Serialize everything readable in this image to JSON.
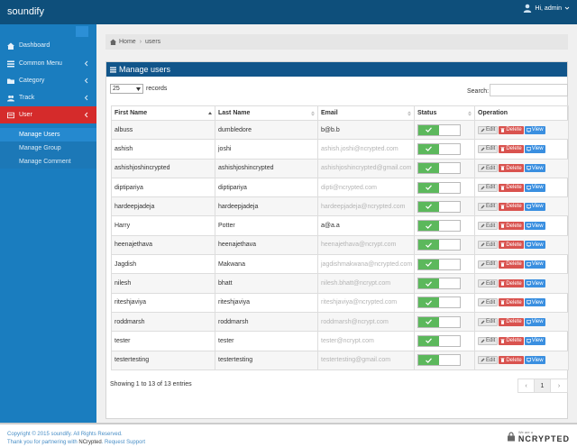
{
  "app": {
    "title": "soundify",
    "user_greeting": "Hi, admin"
  },
  "sidebar": {
    "items": [
      {
        "label": "Dashboard",
        "icon": "dashboard-icon"
      },
      {
        "label": "Common Menu",
        "icon": "list-icon"
      },
      {
        "label": "Category",
        "icon": "folder-icon"
      },
      {
        "label": "Track",
        "icon": "users-icon"
      },
      {
        "label": "User",
        "icon": "user-icon"
      }
    ],
    "submenu": [
      "Manage Users",
      "Manage Group",
      "Manage Comment"
    ]
  },
  "breadcrumb": {
    "home": "Home",
    "current": "users"
  },
  "panel": {
    "title": "Manage users"
  },
  "table_controls": {
    "length_value": "25",
    "length_label": "records",
    "search_label": "Search:"
  },
  "table": {
    "headers": [
      "First Name",
      "Last Name",
      "Email",
      "Status",
      "Operation"
    ],
    "rows": [
      {
        "first": "albuss",
        "last": "dumbledore",
        "email": "b@b.b",
        "blur": false
      },
      {
        "first": "ashish",
        "last": "joshi",
        "email": "ashish.joshi@ncrypted.com",
        "blur": true
      },
      {
        "first": "ashishjoshincrypted",
        "last": "ashishjoshincrypted",
        "email": "ashishjoshincrypted@gmail.com",
        "blur": true
      },
      {
        "first": "diptipariya",
        "last": "diptipariya",
        "email": "dipti@ncrypted.com",
        "blur": true
      },
      {
        "first": "hardeepjadeja",
        "last": "hardeepjadeja",
        "email": "hardeepjadeja@ncrypted.com",
        "blur": true
      },
      {
        "first": "Harry",
        "last": "Potter",
        "email": "a@a.a",
        "blur": false
      },
      {
        "first": "heenajethava",
        "last": "heenajethava",
        "email": "heenajethava@ncrypt.com",
        "blur": true
      },
      {
        "first": "Jagdish",
        "last": "Makwana",
        "email": "jagdishmakwana@ncrypted.com",
        "blur": true
      },
      {
        "first": "nilesh",
        "last": "bhatt",
        "email": "nilesh.bhatt@ncrypt.com",
        "blur": true
      },
      {
        "first": "riteshjaviya",
        "last": "riteshjaviya",
        "email": "riteshjaviya@ncrypted.com",
        "blur": true
      },
      {
        "first": "roddmarsh",
        "last": "roddmarsh",
        "email": "roddmarsh@ncrypt.com",
        "blur": true
      },
      {
        "first": "tester",
        "last": "tester",
        "email": "tester@ncrypt.com",
        "blur": true
      },
      {
        "first": "testertesting",
        "last": "testertesting",
        "email": "testertesting@gmail.com",
        "blur": true
      }
    ],
    "op_labels": {
      "edit": "Edit",
      "delete": "Delete",
      "view": "View"
    }
  },
  "table_footer": {
    "info": "Showing 1 to 13 of 13 entries",
    "prev": "‹",
    "page": "1",
    "next": "›"
  },
  "footer": {
    "copyright": "Copyright © 2015 soundify. All Rights Reserved.",
    "partner_prefix": "Thank you for partnering with ",
    "partner_name": "NCrypted",
    "partner_suffix": ". Request Support",
    "brand_tag": "We are a",
    "brand_name": "NCRYPTED"
  },
  "colors": {
    "topbar": "#0e4f7b",
    "sidebar": "#1a7dbf",
    "active_nav": "#d52b2b",
    "panel_head": "#11558a",
    "status_on": "#5cb85c"
  }
}
